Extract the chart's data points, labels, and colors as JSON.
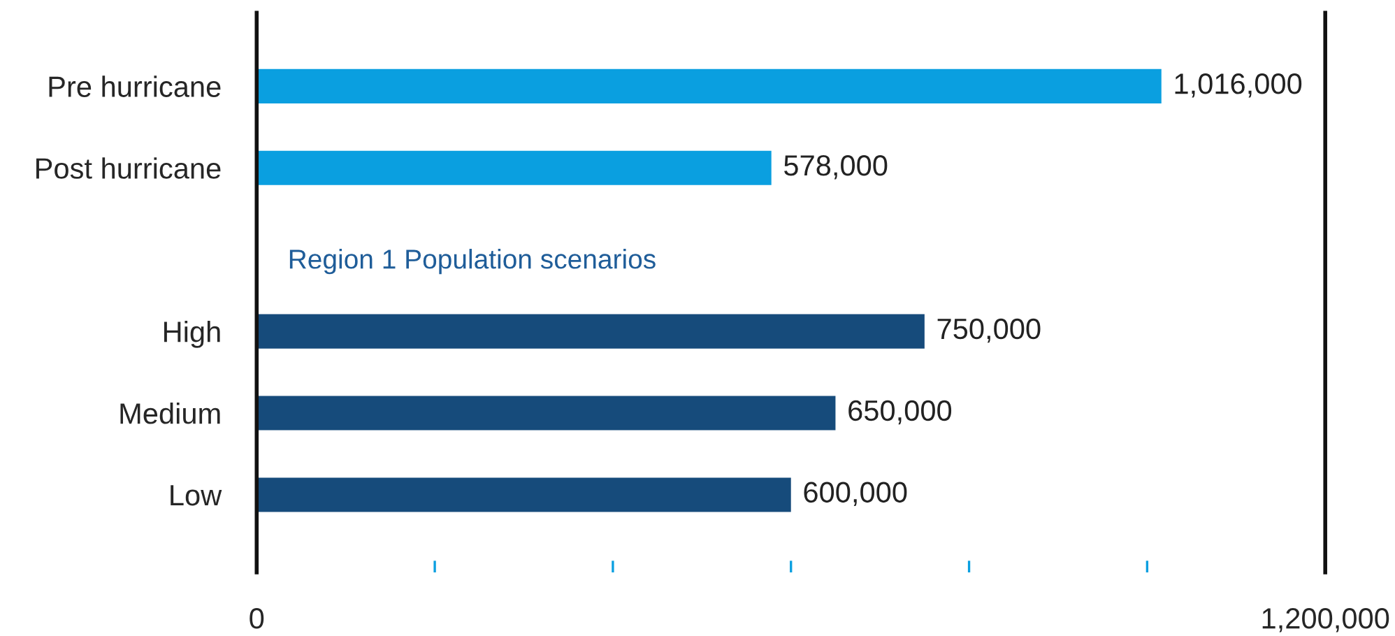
{
  "chart_data": {
    "type": "bar",
    "orientation": "horizontal",
    "categories": [
      "Pre hurricane",
      "Post hurricane",
      null,
      "High",
      "Medium",
      "Low"
    ],
    "values": [
      1016000,
      578000,
      null,
      750000,
      650000,
      600000
    ],
    "colors": [
      "#0a9fe0",
      "#0a9fe0",
      "#0a9fe0",
      "#164b7b",
      "#164b7b",
      "#164b7b"
    ],
    "value_labels": [
      "1,016,000",
      "578,000",
      null,
      "750,000",
      "650,000",
      "600,000"
    ],
    "xlim": [
      0,
      1200000
    ],
    "xticks": [
      0,
      {
        "value": 200000,
        "label": null
      },
      {
        "value": 400000,
        "label": null
      },
      {
        "value": 600000,
        "label": null
      },
      {
        "value": 800000,
        "label": null
      },
      {
        "value": 1000000,
        "label": null
      },
      {
        "value": 1200000,
        "label": "1,200,000"
      }
    ],
    "annotations": [
      "Region 1 Population scenarios"
    ],
    "grid": false,
    "legend": false
  }
}
